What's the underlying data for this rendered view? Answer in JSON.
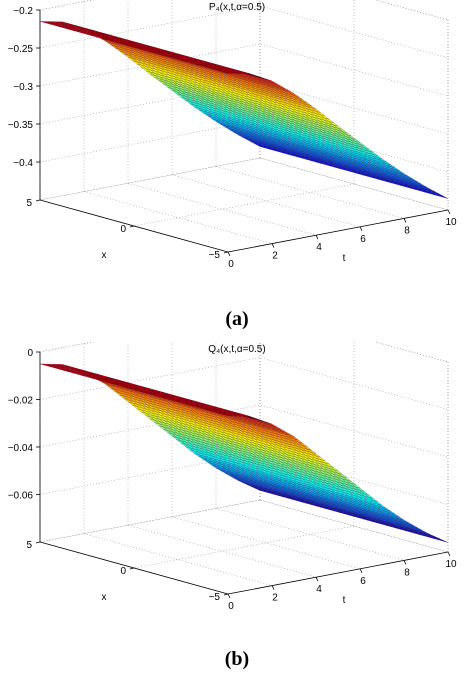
{
  "chart_data": [
    {
      "type": "surface",
      "panel_label": "(a)",
      "title": "P₄(x,t,α=0.5)",
      "xlabel": "t",
      "ylabel": "x",
      "zlabel": "",
      "xlim": [
        0,
        10
      ],
      "ylim": [
        -5,
        5
      ],
      "zlim": [
        -0.45,
        -0.2
      ],
      "xticks": [
        "0",
        "2",
        "4",
        "6",
        "8",
        "10"
      ],
      "yticks": [
        "-5",
        "0",
        "5"
      ],
      "zticks": [
        "-0.2",
        "-0.25",
        "-0.3",
        "-0.35",
        "-0.4"
      ],
      "grid": true,
      "colormap": "jet",
      "t": [
        0,
        1,
        2,
        3,
        4,
        5,
        6,
        7,
        8,
        9,
        10
      ],
      "z_at_t": [
        -0.215,
        -0.221,
        -0.236,
        -0.258,
        -0.284,
        -0.312,
        -0.339,
        -0.366,
        -0.391,
        -0.414,
        -0.435
      ],
      "note_constant_in_x": true
    },
    {
      "type": "surface",
      "panel_label": "(b)",
      "title": "Q₄(x,t,α=0.5)",
      "xlabel": "t",
      "ylabel": "x",
      "zlabel": "",
      "xlim": [
        0,
        10
      ],
      "ylim": [
        -5,
        5
      ],
      "zlim": [
        -0.08,
        0
      ],
      "xticks": [
        "0",
        "2",
        "4",
        "6",
        "8",
        "10"
      ],
      "yticks": [
        "-5",
        "0",
        "5"
      ],
      "zticks": [
        "0",
        "-0.02",
        "-0.04",
        "-0.06"
      ],
      "grid": true,
      "colormap": "jet",
      "t": [
        0,
        1,
        2,
        3,
        4,
        5,
        6,
        7,
        8,
        9,
        10
      ],
      "z_at_t": [
        -0.005,
        -0.007,
        -0.012,
        -0.019,
        -0.028,
        -0.037,
        -0.046,
        -0.055,
        -0.063,
        -0.07,
        -0.076
      ],
      "note_constant_in_x": true
    }
  ],
  "captions": {
    "a": "(a)",
    "b": "(b)"
  }
}
